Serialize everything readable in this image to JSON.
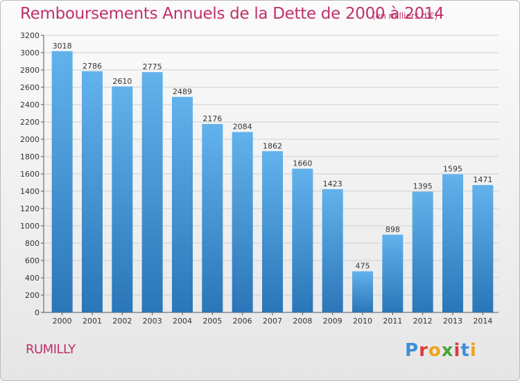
{
  "header": {
    "title": "Remboursements Annuels de la Dette de 2000 à 2014",
    "subtitle": "(en milliers d'€)"
  },
  "footer": {
    "commune": "RUMILLY",
    "logo_text": [
      "P",
      "r",
      "o",
      "x",
      "i",
      "t",
      "i"
    ],
    "logo_colors": [
      "#3d8fd6",
      "#e03a3a",
      "#f0a21e",
      "#4aa33a",
      "#e03a3a",
      "#3d8fd6",
      "#f0a21e"
    ]
  },
  "colors": {
    "bar_top": "#62b2ec",
    "bar_bottom": "#2a76b8",
    "grid": "#d0d0d0",
    "accent": "#c0306a"
  },
  "chart_data": {
    "type": "bar",
    "title": "Remboursements Annuels de la Dette de 2000 à 2014",
    "subtitle": "(en milliers d'€)",
    "categories": [
      "2000",
      "2001",
      "2002",
      "2003",
      "2004",
      "2005",
      "2006",
      "2007",
      "2008",
      "2009",
      "2010",
      "2011",
      "2012",
      "2013",
      "2014"
    ],
    "values": [
      3018,
      2786,
      2610,
      2775,
      2489,
      2176,
      2084,
      1862,
      1660,
      1423,
      475,
      898,
      1395,
      1595,
      1471
    ],
    "ylim": [
      0,
      3200
    ],
    "yticks": [
      0,
      200,
      400,
      600,
      800,
      1000,
      1200,
      1400,
      1600,
      1800,
      2000,
      2200,
      2400,
      2600,
      2800,
      3000,
      3200
    ],
    "grid": true,
    "data_labels": true
  }
}
